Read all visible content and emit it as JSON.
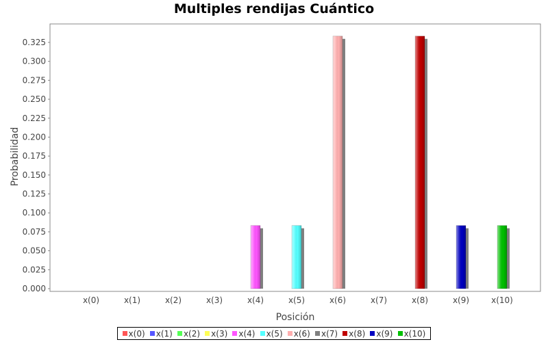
{
  "chart_data": {
    "type": "bar",
    "title": "Multiples rendijas Cuántico",
    "xlabel": "Posición",
    "ylabel": "Probabilidad",
    "ylim": [
      0,
      0.34
    ],
    "yticks": [
      0.0,
      0.025,
      0.05,
      0.075,
      0.1,
      0.125,
      0.15,
      0.175,
      0.2,
      0.225,
      0.25,
      0.275,
      0.3,
      0.325
    ],
    "ytick_labels": [
      "0.000",
      "0.025",
      "0.050",
      "0.075",
      "0.100",
      "0.125",
      "0.150",
      "0.175",
      "0.200",
      "0.225",
      "0.250",
      "0.275",
      "0.300",
      "0.325"
    ],
    "categories": [
      "x(0)",
      "x(1)",
      "x(2)",
      "x(3)",
      "x(4)",
      "x(5)",
      "x(6)",
      "x(7)",
      "x(8)",
      "x(9)",
      "x(10)"
    ],
    "series": [
      {
        "name": "x(0)",
        "color": "#ff5555",
        "values": [
          0,
          0,
          0,
          0,
          0,
          0,
          0,
          0,
          0,
          0,
          0
        ]
      },
      {
        "name": "x(1)",
        "color": "#5555ff",
        "values": [
          0,
          0,
          0,
          0,
          0,
          0,
          0,
          0,
          0,
          0,
          0
        ]
      },
      {
        "name": "x(2)",
        "color": "#55ff55",
        "values": [
          0,
          0,
          0,
          0,
          0,
          0,
          0,
          0,
          0,
          0,
          0
        ]
      },
      {
        "name": "x(3)",
        "color": "#ffff55",
        "values": [
          0,
          0,
          0,
          0,
          0,
          0,
          0,
          0,
          0,
          0,
          0
        ]
      },
      {
        "name": "x(4)",
        "color": "#ff55ff",
        "values": [
          0,
          0,
          0,
          0,
          0.0833,
          0,
          0,
          0,
          0,
          0,
          0
        ]
      },
      {
        "name": "x(5)",
        "color": "#55ffff",
        "values": [
          0,
          0,
          0,
          0,
          0,
          0.0833,
          0,
          0,
          0,
          0,
          0
        ]
      },
      {
        "name": "x(6)",
        "color": "#ffafaf",
        "values": [
          0,
          0,
          0,
          0,
          0,
          0,
          0.3333,
          0,
          0,
          0,
          0
        ]
      },
      {
        "name": "x(7)",
        "color": "#808080",
        "values": [
          0,
          0,
          0,
          0,
          0,
          0,
          0,
          0,
          0,
          0,
          0
        ]
      },
      {
        "name": "x(8)",
        "color": "#c00000",
        "values": [
          0,
          0,
          0,
          0,
          0,
          0,
          0,
          0,
          0.3333,
          0,
          0
        ]
      },
      {
        "name": "x(9)",
        "color": "#0000c0",
        "values": [
          0,
          0,
          0,
          0,
          0,
          0,
          0,
          0,
          0,
          0.0833,
          0
        ]
      },
      {
        "name": "x(10)",
        "color": "#00c000",
        "values": [
          0,
          0,
          0,
          0,
          0,
          0,
          0,
          0,
          0,
          0,
          0.0833
        ]
      }
    ],
    "grid": false,
    "legend_position": "bottom"
  }
}
